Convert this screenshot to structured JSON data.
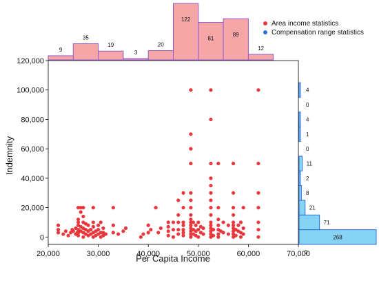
{
  "chart_data": {
    "type": "scatter",
    "x_label": "Per Capita Income",
    "y_label": "Indemnity",
    "xlim": [
      20000,
      70000
    ],
    "ylim": [
      -5000,
      120000
    ],
    "x_ticks": [
      "20,000",
      "30,000",
      "40,000",
      "50,000",
      "60,000",
      "70,000"
    ],
    "y_ticks": [
      "0",
      "20,000",
      "40,000",
      "60,000",
      "80,000",
      "100,000",
      "120,000"
    ],
    "legend": {
      "position": "top-right",
      "entries": [
        {
          "label": "Area income statistics",
          "color": "#e8383d"
        },
        {
          "label": "Compensation range statistics",
          "color": "#2a6fdb"
        }
      ]
    },
    "top_histogram": {
      "bin_edges": [
        20000,
        25000,
        30000,
        35000,
        40000,
        45000,
        50000,
        55000,
        60000,
        65000
      ],
      "counts": [
        9,
        35,
        19,
        3,
        20,
        122,
        81,
        89,
        12
      ],
      "labels": [
        "9",
        "35",
        "19",
        "3",
        "20",
        "122",
        "81",
        "89",
        "12"
      ],
      "fill": "#f7a6a8",
      "stroke": "#8e5bd0"
    },
    "right_histogram": {
      "bin_edges": [
        -5000,
        5000,
        15000,
        25000,
        35000,
        45000,
        55000,
        65000,
        75000,
        85000,
        95000,
        105000
      ],
      "counts": [
        268,
        71,
        21,
        8,
        2,
        11,
        0,
        1,
        4,
        0,
        4
      ],
      "labels": [
        "268",
        "71",
        "21",
        "8",
        "2",
        "11",
        "0",
        "1",
        "4",
        "0",
        "4"
      ],
      "bottom_label": "0",
      "fill": "#87d3f5",
      "stroke": "#2a6fdb"
    },
    "points": [
      [
        22000,
        8000
      ],
      [
        22000,
        5000
      ],
      [
        22000,
        3000
      ],
      [
        23000,
        2000
      ],
      [
        23500,
        4000
      ],
      [
        24000,
        1000
      ],
      [
        24500,
        3000
      ],
      [
        24800,
        5000
      ],
      [
        25000,
        4000
      ],
      [
        25500,
        2000
      ],
      [
        25500,
        6000
      ],
      [
        25800,
        3000
      ],
      [
        26000,
        20000
      ],
      [
        26000,
        12000
      ],
      [
        26000,
        10000
      ],
      [
        26000,
        8000
      ],
      [
        26000,
        5000
      ],
      [
        26000,
        3000
      ],
      [
        26000,
        1000
      ],
      [
        26500,
        20000
      ],
      [
        26500,
        17000
      ],
      [
        26500,
        7000
      ],
      [
        26500,
        4000
      ],
      [
        27000,
        20000
      ],
      [
        27000,
        14000
      ],
      [
        27000,
        10000
      ],
      [
        27000,
        6000
      ],
      [
        27000,
        3000
      ],
      [
        27000,
        0
      ],
      [
        27500,
        9000
      ],
      [
        27500,
        5000
      ],
      [
        27500,
        2000
      ],
      [
        28000,
        8000
      ],
      [
        28000,
        4000
      ],
      [
        28000,
        1000
      ],
      [
        28500,
        5000
      ],
      [
        28500,
        2000
      ],
      [
        29000,
        20000
      ],
      [
        29000,
        10000
      ],
      [
        29000,
        7000
      ],
      [
        29000,
        3000
      ],
      [
        29000,
        0
      ],
      [
        29500,
        4000
      ],
      [
        29500,
        1000
      ],
      [
        30000,
        8000
      ],
      [
        30000,
        5000
      ],
      [
        30000,
        2000
      ],
      [
        30500,
        10000
      ],
      [
        30500,
        3000
      ],
      [
        30500,
        0
      ],
      [
        31000,
        6000
      ],
      [
        31000,
        3000
      ],
      [
        31000,
        1000
      ],
      [
        31500,
        2000
      ],
      [
        33000,
        20000
      ],
      [
        33000,
        8000
      ],
      [
        33000,
        3000
      ],
      [
        34000,
        2000
      ],
      [
        35000,
        4000
      ],
      [
        35500,
        6000
      ],
      [
        38500,
        0
      ],
      [
        39000,
        2000
      ],
      [
        40000,
        8000
      ],
      [
        40000,
        3000
      ],
      [
        40500,
        5000
      ],
      [
        41500,
        20000
      ],
      [
        42000,
        3000
      ],
      [
        42500,
        6000
      ],
      [
        44000,
        10000
      ],
      [
        44000,
        7000
      ],
      [
        44000,
        4000
      ],
      [
        44000,
        1000
      ],
      [
        45000,
        10000
      ],
      [
        45000,
        5000
      ],
      [
        45000,
        0
      ],
      [
        46000,
        25000
      ],
      [
        46000,
        15000
      ],
      [
        46000,
        10000
      ],
      [
        46000,
        5000
      ],
      [
        46000,
        2000
      ],
      [
        47000,
        30000
      ],
      [
        47000,
        20000
      ],
      [
        47000,
        10000
      ],
      [
        47000,
        8000
      ],
      [
        47000,
        5000
      ],
      [
        47000,
        3000
      ],
      [
        47000,
        1000
      ],
      [
        48500,
        100000
      ],
      [
        48500,
        70000
      ],
      [
        48500,
        60000
      ],
      [
        48500,
        50000
      ],
      [
        48500,
        30000
      ],
      [
        48500,
        25000
      ],
      [
        48500,
        20000
      ],
      [
        48500,
        15000
      ],
      [
        48500,
        12000
      ],
      [
        48500,
        10000
      ],
      [
        48500,
        8000
      ],
      [
        48500,
        6000
      ],
      [
        48500,
        4000
      ],
      [
        48500,
        2000
      ],
      [
        48500,
        0
      ],
      [
        49000,
        10000
      ],
      [
        49000,
        5000
      ],
      [
        49000,
        2000
      ],
      [
        49500,
        8000
      ],
      [
        49500,
        4000
      ],
      [
        49500,
        1000
      ],
      [
        50000,
        10000
      ],
      [
        50000,
        5000
      ],
      [
        50000,
        0
      ],
      [
        50500,
        7000
      ],
      [
        50500,
        3000
      ],
      [
        51000,
        6000
      ],
      [
        51000,
        2000
      ],
      [
        52500,
        100000
      ],
      [
        52500,
        80000
      ],
      [
        52500,
        50000
      ],
      [
        52500,
        40000
      ],
      [
        52500,
        35000
      ],
      [
        52500,
        30000
      ],
      [
        52500,
        25000
      ],
      [
        52500,
        20000
      ],
      [
        52500,
        15000
      ],
      [
        52500,
        10000
      ],
      [
        52500,
        8000
      ],
      [
        52500,
        6000
      ],
      [
        52500,
        4000
      ],
      [
        52500,
        2000
      ],
      [
        52500,
        0
      ],
      [
        53000,
        5000
      ],
      [
        53000,
        1000
      ],
      [
        54000,
        50000
      ],
      [
        54000,
        20000
      ],
      [
        54000,
        12000
      ],
      [
        54000,
        8000
      ],
      [
        54000,
        5000
      ],
      [
        54000,
        2000
      ],
      [
        54000,
        0
      ],
      [
        54500,
        4000
      ],
      [
        55000,
        10000
      ],
      [
        55000,
        3000
      ],
      [
        56000,
        8000
      ],
      [
        56000,
        2000
      ],
      [
        57000,
        50000
      ],
      [
        57000,
        30000
      ],
      [
        57000,
        20000
      ],
      [
        57000,
        15000
      ],
      [
        57000,
        10000
      ],
      [
        57000,
        8000
      ],
      [
        57000,
        6000
      ],
      [
        57000,
        4000
      ],
      [
        57000,
        2000
      ],
      [
        57000,
        0
      ],
      [
        57500,
        5000
      ],
      [
        57500,
        1000
      ],
      [
        58000,
        8000
      ],
      [
        58000,
        4000
      ],
      [
        58500,
        10000
      ],
      [
        58500,
        3000
      ],
      [
        58500,
        0
      ],
      [
        59000,
        20000
      ],
      [
        59000,
        6000
      ],
      [
        59000,
        2000
      ],
      [
        62000,
        100000
      ],
      [
        62000,
        50000
      ],
      [
        62000,
        30000
      ],
      [
        62000,
        20000
      ],
      [
        62000,
        10000
      ],
      [
        62000,
        5000
      ],
      [
        62000,
        0
      ]
    ]
  }
}
